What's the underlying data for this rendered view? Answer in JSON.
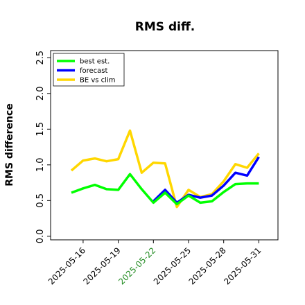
{
  "chart_data": {
    "type": "line",
    "title": "RMS diff.",
    "xlabel": "",
    "ylabel": "RMS difference",
    "ylim": [
      -0.05,
      2.6
    ],
    "yticks": [
      "0.0",
      "0.5",
      "1.0",
      "1.5",
      "2.0",
      "2.5"
    ],
    "ytick_values": [
      0.0,
      0.5,
      1.0,
      1.5,
      2.0,
      2.5
    ],
    "x": [
      "2025-05-15",
      "2025-05-16",
      "2025-05-17",
      "2025-05-18",
      "2025-05-19",
      "2025-05-20",
      "2025-05-21",
      "2025-05-22",
      "2025-05-23",
      "2025-05-24",
      "2025-05-25",
      "2025-05-26",
      "2025-05-27",
      "2025-05-28",
      "2025-05-29",
      "2025-05-30",
      "2025-05-31"
    ],
    "xticks": [
      "2025-05-16",
      "2025-05-19",
      "2025-05-22",
      "2025-05-25",
      "2025-05-28",
      "2025-05-31"
    ],
    "highlighted_xtick": "2025-05-22",
    "highlight_color": "#228B22",
    "series": [
      {
        "name": "best est.",
        "color": "#00ff00",
        "values": [
          0.61,
          0.67,
          0.72,
          0.66,
          0.65,
          0.87,
          0.66,
          0.47,
          0.61,
          0.45,
          0.57,
          0.47,
          0.49,
          0.62,
          0.73,
          0.74,
          0.74
        ]
      },
      {
        "name": "forecast",
        "color": "#0000ff",
        "values": [
          null,
          null,
          null,
          null,
          null,
          null,
          null,
          0.49,
          0.65,
          0.47,
          0.58,
          0.54,
          0.57,
          0.71,
          0.89,
          0.85,
          1.11
        ]
      },
      {
        "name": "BE vs clim",
        "color": "#ffd700",
        "values": [
          0.92,
          1.06,
          1.09,
          1.05,
          1.08,
          1.48,
          0.89,
          1.03,
          1.02,
          0.41,
          0.65,
          0.55,
          0.59,
          0.77,
          1.01,
          0.96,
          1.16
        ]
      }
    ],
    "legend_position": "top-left",
    "grid": false
  }
}
